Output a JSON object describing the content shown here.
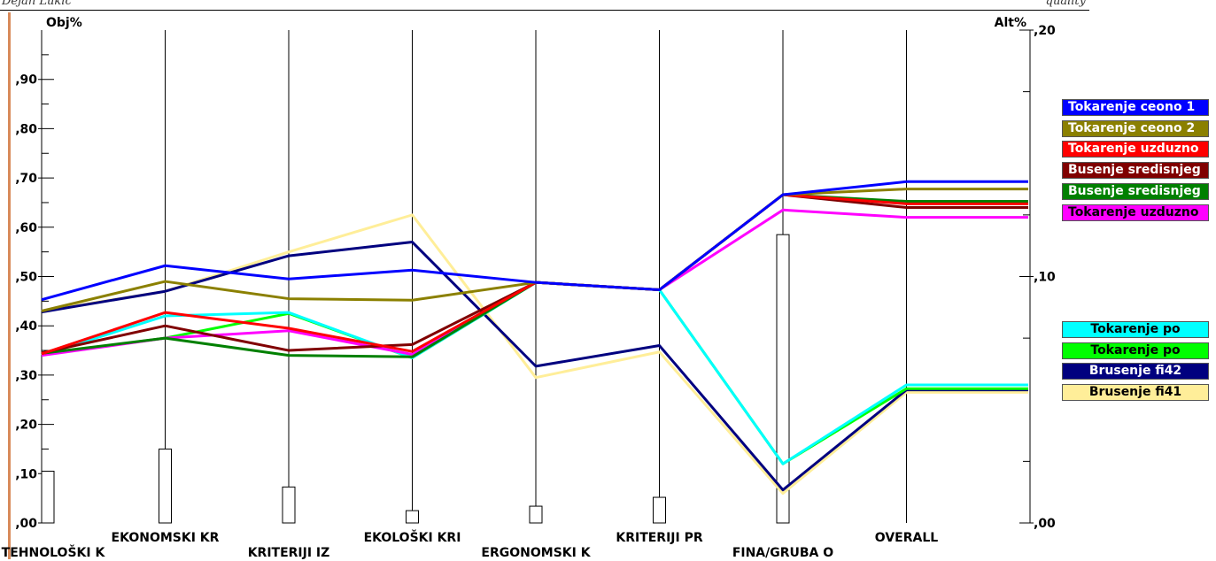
{
  "header": {
    "left_text": "Dejan Lukić",
    "right_text": "quality"
  },
  "colors": {
    "background": "#ffffff",
    "axis": "#000000",
    "page_rule": "#d88a5a"
  },
  "chart_data": {
    "type": "line",
    "left_axis_label": "Obj%",
    "right_axis_label": "Alt%",
    "left_ticks": [
      {
        "value": 0.0,
        "label": ",00"
      },
      {
        "value": 0.1,
        "label": ",10"
      },
      {
        "value": 0.2,
        "label": ",20"
      },
      {
        "value": 0.3,
        "label": ",30"
      },
      {
        "value": 0.4,
        "label": ",40"
      },
      {
        "value": 0.5,
        "label": ",50"
      },
      {
        "value": 0.6,
        "label": ",60"
      },
      {
        "value": 0.7,
        "label": ",70"
      },
      {
        "value": 0.8,
        "label": ",80"
      },
      {
        "value": 0.9,
        "label": ",90"
      }
    ],
    "ylim_left": [
      0,
      1.0
    ],
    "right_ticks": [
      {
        "value": 0.0,
        "label": ",00"
      },
      {
        "value": 0.1,
        "label": ",10"
      },
      {
        "value": 0.2,
        "label": ",20"
      }
    ],
    "ylim_right": [
      0,
      0.2
    ],
    "criteria": [
      "TEHNOLOŠKI K",
      "EKONOMSKI KR",
      "KRITERIJI IZ",
      "EKOLOŠKI KRI",
      "ERGONOMSKI K",
      "KRITERIJI PR",
      "FINA/GRUBA O",
      "OVERALL"
    ],
    "criteria_label_row": [
      1,
      0,
      1,
      0,
      1,
      0,
      1,
      0
    ],
    "objective_weights": [
      0.105,
      0.15,
      0.073,
      0.025,
      0.034,
      0.052,
      0.585,
      null
    ],
    "series": [
      {
        "name": "Tokarenje ceono 1",
        "color": "#0000ff",
        "text_color": "#ffffff",
        "group": 1,
        "values": [
          0.453,
          0.522,
          0.495,
          0.513,
          0.488,
          0.473,
          0.666,
          0.1385
        ]
      },
      {
        "name": "Tokarenje ceono 2",
        "color": "#8b8000",
        "text_color": "#ffffff",
        "group": 1,
        "values": [
          0.43,
          0.49,
          0.455,
          0.452,
          0.488,
          0.473,
          0.666,
          0.1355
        ]
      },
      {
        "name": "Tokarenje uzduzno",
        "color": "#ff0000",
        "text_color": "#ffffff",
        "group": 1,
        "values": [
          0.343,
          0.427,
          0.395,
          0.348,
          0.488,
          0.473,
          0.666,
          0.1295
        ]
      },
      {
        "name": "Busenje sredisnjeg",
        "color": "#800000",
        "text_color": "#ffffff",
        "group": 1,
        "values": [
          0.345,
          0.4,
          0.35,
          0.362,
          0.488,
          0.473,
          0.666,
          0.128
        ]
      },
      {
        "name": "Busenje sredisnjeg",
        "color": "#008000",
        "text_color": "#ffffff",
        "group": 1,
        "values": [
          0.344,
          0.375,
          0.34,
          0.337,
          0.488,
          0.473,
          0.666,
          0.1305
        ]
      },
      {
        "name": "Tokarenje uzduzno",
        "color": "#ff00ff",
        "text_color": "#000000",
        "group": 1,
        "values": [
          0.34,
          0.375,
          0.39,
          0.342,
          0.488,
          0.473,
          0.635,
          0.124
        ]
      },
      {
        "name": "Tokarenje po",
        "color": "#00ffff",
        "text_color": "#000000",
        "group": 2,
        "values": [
          0.34,
          0.42,
          0.427,
          0.335,
          0.488,
          0.473,
          0.12,
          0.056
        ]
      },
      {
        "name": "Tokarenje po",
        "color": "#00ff00",
        "text_color": "#000000",
        "group": 2,
        "values": [
          0.342,
          0.375,
          0.425,
          0.335,
          0.488,
          0.473,
          0.12,
          0.0545
        ]
      },
      {
        "name": "Brusenje fi42",
        "color": "#00007f",
        "text_color": "#ffffff",
        "group": 2,
        "values": [
          0.428,
          0.47,
          0.542,
          0.57,
          0.318,
          0.36,
          0.067,
          0.054
        ]
      },
      {
        "name": "Brusenje fi41",
        "color": "#ffee99",
        "text_color": "#000000",
        "group": 2,
        "values": [
          0.43,
          0.47,
          0.55,
          0.625,
          0.295,
          0.347,
          0.06,
          0.053
        ]
      }
    ]
  }
}
